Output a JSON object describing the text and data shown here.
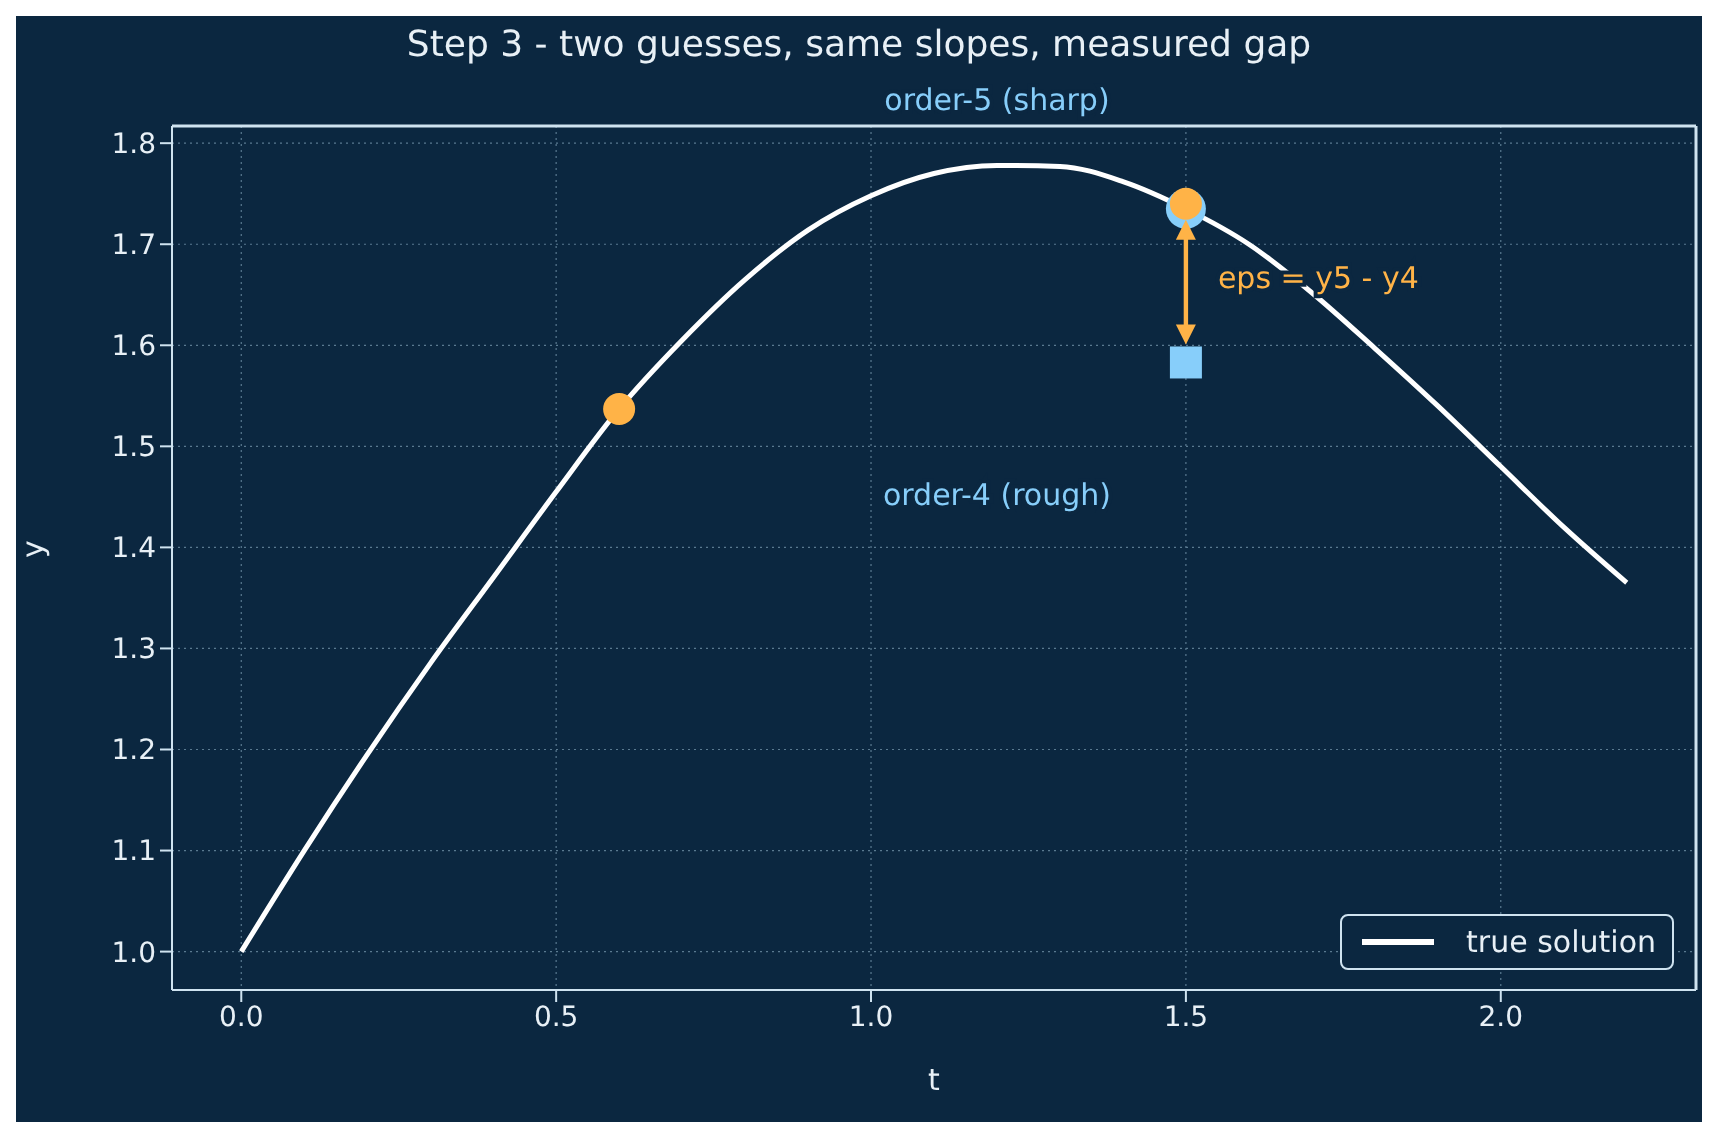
{
  "chart_data": {
    "type": "line",
    "title": "Step 3 - two guesses, same slopes, measured gap",
    "xlabel": "t",
    "ylabel": "y",
    "xlim": [
      -0.11,
      2.31
    ],
    "ylim": [
      0.962,
      1.817
    ],
    "xticks": [
      {
        "value": 0,
        "label": "0.0"
      },
      0.5,
      {
        "value": 1,
        "label": "1.0"
      },
      1.5,
      {
        "value": 2,
        "label": "2.0"
      }
    ],
    "yticks": [
      {
        "value": 1,
        "label": "1.0"
      },
      1.1,
      1.2,
      1.3,
      1.4,
      1.5,
      1.6,
      1.7,
      1.8
    ],
    "grid": true,
    "legend": "bottom right",
    "series": [
      {
        "name": "true solution",
        "color": "#ffffff",
        "marker": "none",
        "x": [
          0,
          0.1,
          0.2,
          0.3,
          0.4,
          0.5,
          0.6,
          0.7,
          0.8,
          0.9,
          1.0,
          1.1,
          1.2,
          1.3,
          1.4,
          1.5,
          1.6,
          1.7,
          1.8,
          1.9,
          2.0,
          2.1,
          2.2
        ],
        "values": [
          1.0,
          1.1,
          1.195,
          1.285,
          1.37,
          1.455,
          1.537,
          1.605,
          1.665,
          1.714,
          1.748,
          1.77,
          1.778,
          1.777,
          1.762,
          1.735,
          1.7,
          1.652,
          1.597,
          1.54,
          1.48,
          1.42,
          1.365
        ]
      },
      {
        "type": "scatter",
        "color": "#87cefa",
        "marker": "circle",
        "x": [
          1.5
        ],
        "values": [
          1.735
        ]
      },
      {
        "type": "scatter",
        "color": "#87cefa",
        "marker": "square",
        "x": [
          1.5
        ],
        "values": [
          1.583
        ]
      },
      {
        "type": "scatter",
        "color": "#ffb347",
        "marker": "circle",
        "x": [
          0.6,
          1.5
        ],
        "values": [
          1.537,
          1.74
        ]
      }
    ],
    "annotations": [
      "order-5 (sharp)",
      "order-4 (rough)",
      {
        "text": "eps = y5 - y4",
        "x": 1.5,
        "y": 1.74
      }
    ]
  }
}
